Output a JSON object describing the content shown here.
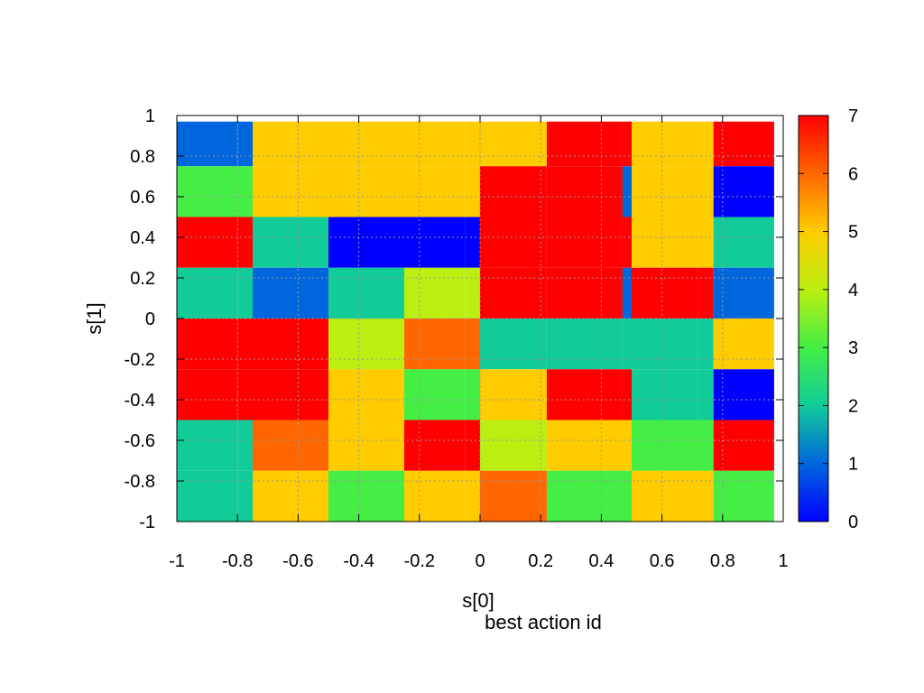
{
  "chart_data": {
    "type": "heatmap",
    "title": "best action id",
    "xlabel": "s[0]",
    "ylabel": "s[1]",
    "xlim": [
      -1,
      1
    ],
    "ylim": [
      -1,
      1
    ],
    "grid": true,
    "x_ticks": [
      "-1",
      "-0.8",
      "-0.6",
      "-0.4",
      "-0.2",
      "0",
      "0.2",
      "0.4",
      "0.6",
      "0.8",
      "1"
    ],
    "y_ticks": [
      "1",
      "0.8",
      "0.6",
      "0.4",
      "0.2",
      "0",
      "-0.2",
      "-0.4",
      "-0.6",
      "-0.8",
      "-1"
    ],
    "colorbar": {
      "min": 0,
      "max": 7,
      "ticks": [
        "0",
        "1",
        "2",
        "3",
        "4",
        "5",
        "6",
        "7"
      ],
      "palette": [
        "#0000ff",
        "#0066dd",
        "#11cc99",
        "#44ee44",
        "#bbee11",
        "#ffcc00",
        "#ff6600",
        "#ff0000"
      ]
    },
    "x_bins": [
      -1,
      -0.8,
      -0.6,
      -0.4,
      -0.2,
      0,
      0.2,
      0.4,
      0.6,
      0.8,
      1
    ],
    "y_bins": [
      -1,
      -0.8,
      -0.6,
      -0.4,
      -0.2,
      0,
      0.2,
      0.4,
      0.6,
      0.8,
      1
    ],
    "z_rows_top_to_bottom": [
      [
        1,
        1,
        5,
        5,
        5,
        5,
        5,
        7,
        7,
        5,
        5,
        7
      ],
      [
        3,
        3,
        5,
        5,
        5,
        5,
        7,
        7,
        1,
        5,
        5,
        0
      ],
      [
        7,
        7,
        2,
        0,
        0,
        0,
        7,
        7,
        7,
        5,
        5,
        2
      ],
      [
        2,
        2,
        1,
        2,
        4,
        4,
        7,
        7,
        1,
        7,
        7,
        1
      ],
      [
        7,
        7,
        7,
        4,
        6,
        6,
        2,
        2,
        2,
        2,
        2,
        5
      ],
      [
        7,
        7,
        7,
        5,
        3,
        3,
        5,
        7,
        7,
        2,
        2,
        0
      ],
      [
        2,
        2,
        6,
        5,
        7,
        7,
        4,
        5,
        5,
        3,
        3,
        7
      ],
      [
        2,
        2,
        5,
        3,
        5,
        5,
        6,
        3,
        3,
        5,
        5,
        3
      ]
    ],
    "x_edges": [
      -1,
      -0.8,
      -0.75,
      -0.5,
      -0.25,
      -0.05,
      0,
      0.22,
      0.47,
      0.5,
      0.72,
      0.77,
      0.97
    ],
    "y_edges": [
      0.97,
      0.75,
      0.5,
      0.25,
      0,
      -0.25,
      -0.5,
      -0.75,
      -1
    ]
  }
}
